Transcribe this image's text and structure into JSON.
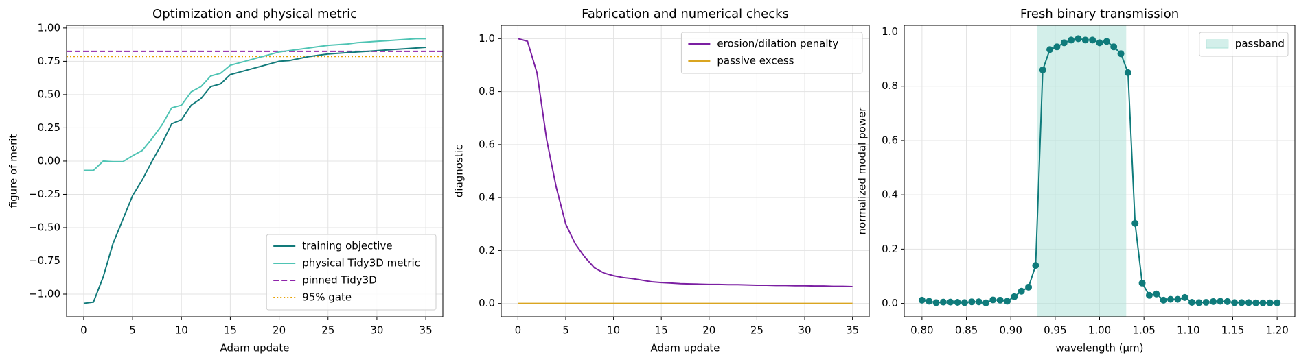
{
  "chart_data": [
    {
      "type": "line",
      "title": "Optimization and physical metric",
      "xlabel": "Adam update",
      "ylabel": "figure of merit",
      "x": [
        0,
        1,
        2,
        3,
        4,
        5,
        6,
        7,
        8,
        9,
        10,
        11,
        12,
        13,
        14,
        15,
        16,
        17,
        18,
        19,
        20,
        21,
        22,
        23,
        24,
        25,
        26,
        27,
        28,
        29,
        30,
        31,
        32,
        33,
        34,
        35
      ],
      "series": [
        {
          "name": "training objective",
          "color": "#127a7a",
          "values": [
            -1.07,
            -1.06,
            -0.87,
            -0.62,
            -0.44,
            -0.26,
            -0.14,
            0.0,
            0.13,
            0.28,
            0.31,
            0.42,
            0.47,
            0.56,
            0.58,
            0.65,
            0.67,
            0.69,
            0.71,
            0.73,
            0.75,
            0.755,
            0.77,
            0.785,
            0.795,
            0.805,
            0.81,
            0.815,
            0.82,
            0.825,
            0.83,
            0.835,
            0.84,
            0.845,
            0.85,
            0.855
          ]
        },
        {
          "name": "physical Tidy3D metric",
          "color": "#4fc4b4",
          "values": [
            -0.07,
            -0.07,
            0.0,
            -0.005,
            -0.005,
            0.04,
            0.08,
            0.17,
            0.27,
            0.4,
            0.42,
            0.52,
            0.56,
            0.64,
            0.66,
            0.72,
            0.74,
            0.76,
            0.78,
            0.8,
            0.82,
            0.83,
            0.84,
            0.85,
            0.86,
            0.87,
            0.875,
            0.88,
            0.89,
            0.895,
            0.9,
            0.905,
            0.91,
            0.915,
            0.92,
            0.92
          ]
        }
      ],
      "hlines": [
        {
          "name": "pinned Tidy3D",
          "color": "#8e24aa",
          "style": "dashed",
          "value": 0.825
        },
        {
          "name": "95% gate",
          "color": "#e6a000",
          "style": "dotted",
          "value": 0.787
        }
      ],
      "xlim": [
        -1.75,
        36.75
      ],
      "xticks": [
        0,
        5,
        10,
        15,
        20,
        25,
        30,
        35
      ],
      "ylim": [
        -1.17,
        1.02
      ],
      "yticks": [
        {
          "value": -1,
          "label": "−1.00"
        },
        {
          "value": -0.75,
          "label": "−0.75"
        },
        {
          "value": -0.5,
          "label": "−0.50"
        },
        {
          "value": -0.25,
          "label": "−0.25"
        },
        {
          "value": 0,
          "label": "0.00"
        },
        {
          "value": 0.25,
          "label": "0.25"
        },
        {
          "value": 0.5,
          "label": "0.50"
        },
        {
          "value": 0.75,
          "label": "0.75"
        },
        {
          "value": 1,
          "label": "1.00"
        }
      ],
      "grid": true,
      "legend": "lower right"
    },
    {
      "type": "line",
      "title": "Fabrication and numerical checks",
      "xlabel": "Adam update",
      "ylabel": "diagnostic",
      "x": [
        0,
        1,
        2,
        3,
        4,
        5,
        6,
        7,
        8,
        9,
        10,
        11,
        12,
        13,
        14,
        15,
        16,
        17,
        18,
        19,
        20,
        21,
        22,
        23,
        24,
        25,
        26,
        27,
        28,
        29,
        30,
        31,
        32,
        33,
        34,
        35
      ],
      "series": [
        {
          "name": "erosion/dilation penalty",
          "color": "#7b1fa2",
          "values": [
            1.0,
            0.99,
            0.87,
            0.62,
            0.44,
            0.3,
            0.225,
            0.175,
            0.135,
            0.115,
            0.105,
            0.098,
            0.094,
            0.088,
            0.082,
            0.079,
            0.077,
            0.075,
            0.074,
            0.073,
            0.072,
            0.072,
            0.071,
            0.071,
            0.07,
            0.069,
            0.069,
            0.068,
            0.068,
            0.067,
            0.067,
            0.066,
            0.066,
            0.065,
            0.065,
            0.064
          ]
        },
        {
          "name": "passive excess",
          "color": "#daa520",
          "values": [
            0,
            0,
            0,
            0,
            0,
            0,
            0,
            0,
            0,
            0,
            0,
            0,
            0,
            0,
            0,
            0,
            0,
            0,
            0,
            0,
            0,
            0,
            0,
            0,
            0,
            0,
            0,
            0,
            0,
            0,
            0,
            0,
            0,
            0,
            0,
            0
          ]
        }
      ],
      "xlim": [
        -1.75,
        36.75
      ],
      "xticks": [
        0,
        5,
        10,
        15,
        20,
        25,
        30,
        35
      ],
      "ylim": [
        -0.05,
        1.05
      ],
      "yticks": [
        {
          "value": 0,
          "label": "0.0"
        },
        {
          "value": 0.2,
          "label": "0.2"
        },
        {
          "value": 0.4,
          "label": "0.4"
        },
        {
          "value": 0.6,
          "label": "0.6"
        },
        {
          "value": 0.8,
          "label": "0.8"
        },
        {
          "value": 1,
          "label": "1.0"
        }
      ],
      "grid": true,
      "legend": "upper right"
    },
    {
      "type": "line",
      "title": "Fresh binary transmission",
      "xlabel": "wavelength (μm)",
      "ylabel": "normalized modal power",
      "markers": true,
      "x": [
        0.8,
        0.808,
        0.816,
        0.824,
        0.832,
        0.84,
        0.848,
        0.856,
        0.864,
        0.872,
        0.88,
        0.888,
        0.896,
        0.904,
        0.912,
        0.92,
        0.928,
        0.936,
        0.944,
        0.952,
        0.96,
        0.968,
        0.976,
        0.984,
        0.992,
        1.0,
        1.008,
        1.016,
        1.024,
        1.032,
        1.04,
        1.048,
        1.056,
        1.064,
        1.072,
        1.08,
        1.088,
        1.096,
        1.104,
        1.112,
        1.12,
        1.128,
        1.136,
        1.144,
        1.152,
        1.16,
        1.168,
        1.176,
        1.184,
        1.192,
        1.2
      ],
      "series": [
        {
          "color": "#0f7b7b",
          "values": [
            0.012,
            0.008,
            0.003,
            0.005,
            0.005,
            0.004,
            0.003,
            0.006,
            0.006,
            0.002,
            0.013,
            0.012,
            0.008,
            0.025,
            0.045,
            0.06,
            0.14,
            0.86,
            0.935,
            0.945,
            0.96,
            0.97,
            0.975,
            0.97,
            0.97,
            0.96,
            0.965,
            0.945,
            0.92,
            0.85,
            0.295,
            0.075,
            0.03,
            0.035,
            0.012,
            0.015,
            0.015,
            0.022,
            0.004,
            0.003,
            0.004,
            0.007,
            0.008,
            0.007,
            0.003,
            0.003,
            0.003,
            0.002,
            0.002,
            0.002,
            0.002
          ]
        }
      ],
      "spans": [
        {
          "name": "passband",
          "color": "#a8e0d6",
          "range": [
            0.93,
            1.03
          ]
        }
      ],
      "xlim": [
        0.78,
        1.22
      ],
      "xticks": [
        {
          "value": 0.8,
          "label": "0.80"
        },
        {
          "value": 0.85,
          "label": "0.85"
        },
        {
          "value": 0.9,
          "label": "0.90"
        },
        {
          "value": 0.95,
          "label": "0.95"
        },
        {
          "value": 1,
          "label": "1.00"
        },
        {
          "value": 1.05,
          "label": "1.05"
        },
        {
          "value": 1.1,
          "label": "1.10"
        },
        {
          "value": 1.15,
          "label": "1.15"
        },
        {
          "value": 1.2,
          "label": "1.20"
        }
      ],
      "ylim": [
        -0.049,
        1.024
      ],
      "yticks": [
        {
          "value": 0,
          "label": "0.0"
        },
        {
          "value": 0.2,
          "label": "0.2"
        },
        {
          "value": 0.4,
          "label": "0.4"
        },
        {
          "value": 0.6,
          "label": "0.6"
        },
        {
          "value": 0.8,
          "label": "0.8"
        },
        {
          "value": 1,
          "label": "1.0"
        }
      ],
      "grid": true,
      "legend": "upper right"
    }
  ]
}
